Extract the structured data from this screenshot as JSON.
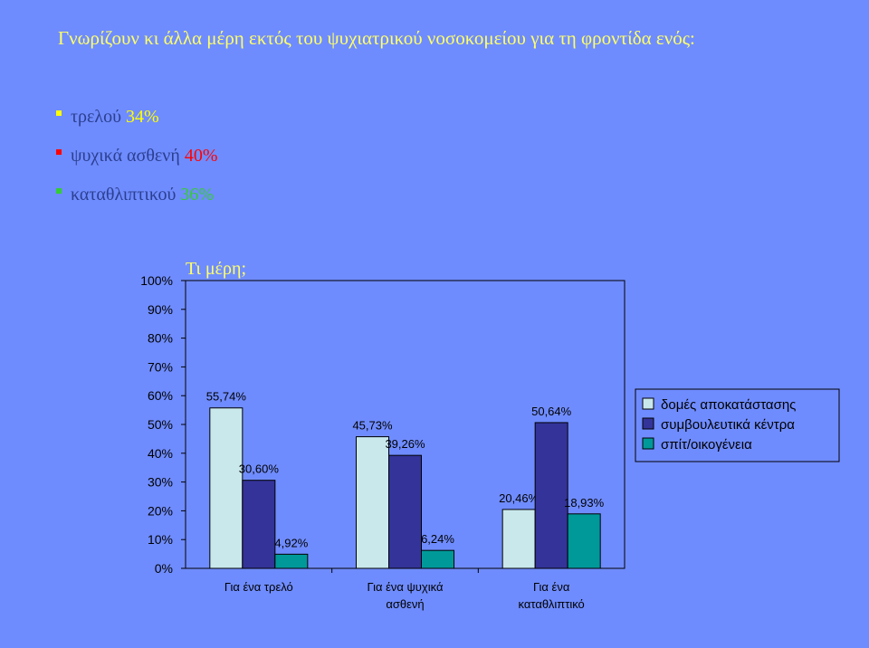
{
  "slide": {
    "title": "Γνωρίζουν κι άλλα μέρη εκτός του ψυχιατρικού νοσοκομείου για τη φροντίδα ενός:",
    "title_color": "#ffff66",
    "background": "#6f8cff",
    "bullets": [
      {
        "label": "τρελού",
        "value": "34%",
        "color": "#ffff00"
      },
      {
        "label": "ψυχικά ασθενή",
        "value": "40%",
        "color": "#ff0000"
      },
      {
        "label": "καταθλιπτικού",
        "value": "36%",
        "color": "#33cc33"
      }
    ]
  },
  "chart_data": {
    "type": "bar",
    "title": "Τι μέρη;",
    "title_color": "#ffff66",
    "categories": [
      "Για ένα τρελό",
      "Για ένα ψυχικά ασθενή",
      "Για ένα καταθλιπτικό"
    ],
    "series": [
      {
        "name": "δομές αποκατάστασης",
        "color": "#c8e8ec",
        "values": [
          55.74,
          45.73,
          20.46
        ],
        "labels": [
          "55,74%",
          "45,73%",
          "20,46%"
        ]
      },
      {
        "name": "συμβουλευτικά κέντρα",
        "color": "#333399",
        "values": [
          30.6,
          39.26,
          50.64
        ],
        "labels": [
          "30,60%",
          "39,26%",
          "50,64%"
        ]
      },
      {
        "name": "σπίτ/οικογένεια",
        "color": "#009999",
        "values": [
          4.92,
          6.24,
          18.93
        ],
        "labels": [
          "4,92%",
          "6,24%",
          "18,93%"
        ]
      }
    ],
    "yticks": [
      "0%",
      "10%",
      "20%",
      "30%",
      "40%",
      "50%",
      "60%",
      "70%",
      "80%",
      "90%",
      "100%"
    ],
    "ylim": [
      0,
      100
    ],
    "grid": false,
    "legend_position": "right"
  }
}
